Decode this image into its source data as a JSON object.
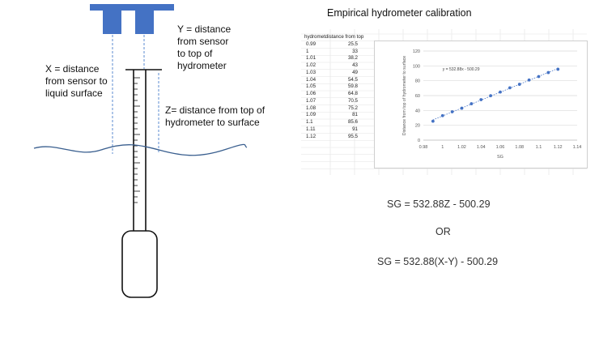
{
  "labels": {
    "y_label": "Y = distance\nfrom sensor\nto top of\nhydrometer",
    "x_label": "X = distance\nfrom sensor to\nliquid surface",
    "z_label": "Z= distance from top of\nhydrometer to surface"
  },
  "title": "Empirical hydrometer calibration",
  "table": {
    "header_col1": "hydromet",
    "header_col2": "distance from top",
    "rows": [
      [
        "0.99",
        "25.5"
      ],
      [
        "1",
        "33"
      ],
      [
        "1.01",
        "38.2"
      ],
      [
        "1.02",
        "43"
      ],
      [
        "1.03",
        "49"
      ],
      [
        "1.04",
        "54.5"
      ],
      [
        "1.05",
        "59.8"
      ],
      [
        "1.06",
        "64.8"
      ],
      [
        "1.07",
        "70.5"
      ],
      [
        "1.08",
        "75.2"
      ],
      [
        "1.09",
        "81"
      ],
      [
        "1.1",
        "85.6"
      ],
      [
        "1.11",
        "91"
      ],
      [
        "1.12",
        "95.5"
      ]
    ]
  },
  "chart_data": {
    "type": "scatter",
    "x": [
      0.99,
      1,
      1.01,
      1.02,
      1.03,
      1.04,
      1.05,
      1.06,
      1.07,
      1.08,
      1.09,
      1.1,
      1.11,
      1.12
    ],
    "y": [
      25.5,
      33,
      38.2,
      43,
      49,
      54.5,
      59.8,
      64.8,
      70.5,
      75.2,
      81,
      85.6,
      91,
      95.5
    ],
    "xlabel": "SG",
    "ylabel": "Distance from top of hydrometer to surface",
    "xlim": [
      0.98,
      1.14
    ],
    "ylim": [
      0,
      120
    ],
    "xticks": [
      "0.98",
      "1",
      "1.02",
      "1.04",
      "1.06",
      "1.08",
      "1.1",
      "1.12",
      "1.14"
    ],
    "yticks": [
      "0",
      "20",
      "40",
      "60",
      "80",
      "100",
      "120"
    ],
    "trendline": {
      "slope": 532.88,
      "intercept": -500.29,
      "label": "y = 532.88x - 500.29"
    },
    "grid": "horizontal",
    "marker_color": "#4472c4"
  },
  "equations": {
    "eq1": "SG = 532.88Z - 500.29",
    "or": "OR",
    "eq2": "SG = 532.88(X-Y) - 500.29"
  },
  "colors": {
    "sensor_blue": "#4472c4",
    "dashed_line": "#5b8bd0",
    "water_line": "#3a5f8f",
    "outline": "#111111"
  }
}
